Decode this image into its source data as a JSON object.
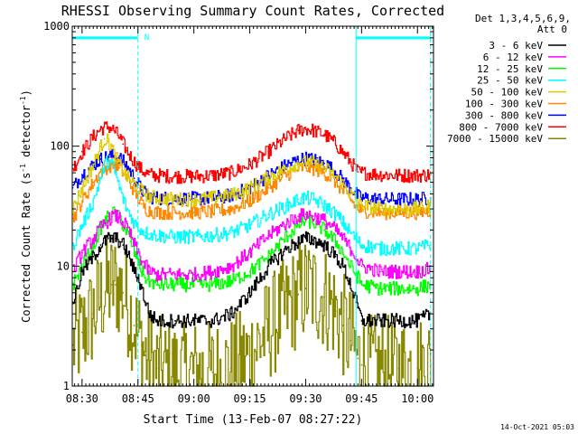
{
  "chart_data": {
    "type": "line",
    "title": "RHESSI Observing Summary Count Rates, Corrected",
    "xlabel": "Start Time (13-Feb-07 08:27:22)",
    "ylabel_base": "Corrected Count Rate (s",
    "ylabel_sup1": "-1",
    "ylabel_mid": " detector",
    "ylabel_sup2": "-1",
    "ylabel_end": ")",
    "x_range_minutes": [
      -2.63,
      94.3
    ],
    "y_range": [
      1,
      1000
    ],
    "y_scale": "log",
    "x_ticks": [
      {
        "minute": 0,
        "label": "08:30"
      },
      {
        "minute": 15,
        "label": "08:45"
      },
      {
        "minute": 30,
        "label": "09:00"
      },
      {
        "minute": 45,
        "label": "09:15"
      },
      {
        "minute": 60,
        "label": "09:30"
      },
      {
        "minute": 75,
        "label": "09:45"
      },
      {
        "minute": 90,
        "label": "10:00"
      }
    ],
    "y_ticks": [
      {
        "value": 1,
        "label": "1"
      },
      {
        "value": 10,
        "label": "10"
      },
      {
        "value": 100,
        "label": "100"
      },
      {
        "value": 1000,
        "label": "1000"
      }
    ],
    "legend": {
      "header_line1": "Det 1,3,4,5,6,9,",
      "header_line2": "Att 0",
      "placement": "right"
    },
    "attenuator_flag": {
      "label": "N",
      "segments": [
        [
          -2.63,
          15
        ],
        [
          73.5,
          93.5
        ]
      ],
      "value": 800
    },
    "dashed_markers_minutes": [
      15,
      93.5
    ],
    "solid_markers_minutes": [
      -2.63,
      73.5
    ],
    "series": [
      {
        "name": "3 - 6 keV",
        "color": "#000000",
        "x": [
          -2.5,
          0,
          3,
          5,
          7,
          8,
          9,
          10,
          11,
          12,
          13,
          14,
          15,
          16,
          17,
          18,
          20,
          25,
          30,
          35,
          40,
          45,
          50,
          55,
          58,
          60,
          62,
          65,
          68,
          70,
          72,
          73.5,
          74,
          75,
          80,
          85,
          90,
          93.5
        ],
        "y": [
          5,
          9,
          12,
          15,
          17,
          17,
          17,
          16,
          15,
          13,
          11,
          9,
          8,
          6.5,
          5,
          4,
          3.5,
          3.5,
          3.5,
          3.5,
          4,
          6,
          10,
          14,
          16,
          17,
          16.5,
          15,
          12,
          10,
          7,
          5,
          4.5,
          3.5,
          3.5,
          3.5,
          3.5,
          4
        ]
      },
      {
        "name": "6 - 12 keV",
        "color": "#ff00ff",
        "x": [
          -2.5,
          0,
          3,
          5,
          7,
          8,
          9,
          10,
          11,
          12,
          13,
          14,
          15,
          16,
          17,
          18,
          20,
          25,
          30,
          35,
          40,
          45,
          50,
          55,
          58,
          60,
          62,
          65,
          68,
          70,
          72,
          73.5,
          74,
          75,
          80,
          85,
          90,
          93.5
        ],
        "y": [
          9,
          13,
          17,
          21,
          24,
          26,
          26,
          25,
          23,
          21,
          18,
          15,
          13,
          11,
          10,
          9,
          8.5,
          8.5,
          8.5,
          9,
          10,
          13,
          18,
          23,
          26,
          27,
          26,
          24,
          20,
          17,
          14,
          12,
          11,
          10,
          9,
          9,
          9,
          9.5
        ]
      },
      {
        "name": "12 - 25 keV",
        "color": "#00ff00",
        "x": [
          -2.5,
          0,
          3,
          5,
          7,
          8,
          9,
          10,
          11,
          12,
          13,
          14,
          15,
          16,
          17,
          18,
          20,
          25,
          30,
          35,
          40,
          45,
          50,
          55,
          58,
          60,
          62,
          65,
          68,
          70,
          72,
          73.5,
          74,
          75,
          80,
          85,
          90,
          93.5
        ],
        "y": [
          7,
          10,
          15,
          21,
          26,
          28,
          27,
          25,
          22,
          19,
          16,
          13,
          11,
          9,
          8,
          7.5,
          7,
          7,
          7,
          7,
          7.5,
          9,
          12,
          18,
          22,
          24,
          23,
          20,
          16,
          13,
          10,
          8.5,
          8,
          7,
          6.5,
          6.5,
          6.5,
          7
        ]
      },
      {
        "name": "25 - 50 keV",
        "color": "#00ffff",
        "x": [
          -2.5,
          0,
          3,
          5,
          6,
          7,
          8,
          9,
          10,
          11,
          12,
          13,
          14,
          15,
          16,
          17,
          18,
          20,
          25,
          30,
          35,
          40,
          45,
          50,
          55,
          58,
          60,
          62,
          65,
          68,
          70,
          72,
          73.5,
          74,
          75,
          80,
          85,
          90,
          93.5
        ],
        "y": [
          15,
          22,
          35,
          55,
          70,
          75,
          70,
          58,
          45,
          36,
          30,
          26,
          23,
          21,
          20,
          19,
          18.5,
          18,
          17.5,
          17.5,
          18,
          19,
          22,
          27,
          32,
          36,
          37,
          36,
          32,
          27,
          23,
          19,
          17,
          16,
          15,
          14,
          14,
          14,
          15
        ]
      },
      {
        "name": "50 - 100 keV",
        "color": "#ddcc00",
        "x": [
          -2.5,
          0,
          3,
          5,
          6,
          7,
          8,
          9,
          10,
          11,
          12,
          13,
          14,
          15,
          16,
          17,
          18,
          20,
          25,
          30,
          35,
          40,
          45,
          50,
          55,
          58,
          60,
          62,
          65,
          68,
          70,
          72,
          73.5,
          74,
          75,
          80,
          85,
          90,
          93.5
        ],
        "y": [
          30,
          45,
          70,
          100,
          115,
          110,
          95,
          80,
          70,
          62,
          56,
          52,
          48,
          45,
          42,
          40,
          38,
          37,
          36,
          36,
          37,
          39,
          45,
          55,
          66,
          72,
          74,
          72,
          66,
          56,
          48,
          40,
          36,
          34,
          32,
          30,
          30,
          30,
          32
        ]
      },
      {
        "name": "100 - 300 keV",
        "color": "#ff8800",
        "x": [
          -2.5,
          0,
          3,
          5,
          7,
          8,
          9,
          10,
          11,
          12,
          13,
          14,
          15,
          16,
          17,
          18,
          20,
          25,
          30,
          35,
          40,
          45,
          50,
          55,
          58,
          60,
          62,
          65,
          68,
          70,
          72,
          73.5,
          74,
          75,
          80,
          85,
          90,
          93.5
        ],
        "y": [
          25,
          35,
          50,
          62,
          68,
          70,
          69,
          66,
          60,
          54,
          48,
          42,
          37,
          33,
          30,
          29,
          28,
          28,
          28,
          28.5,
          30,
          35,
          45,
          58,
          65,
          67,
          65,
          60,
          50,
          42,
          36,
          31,
          30,
          29,
          28,
          28,
          28,
          29
        ]
      },
      {
        "name": "300 - 800 keV",
        "color": "#0000ff",
        "x": [
          -2.5,
          0,
          3,
          5,
          7,
          8,
          9,
          10,
          11,
          12,
          13,
          14,
          15,
          16,
          17,
          18,
          20,
          25,
          30,
          35,
          40,
          45,
          50,
          55,
          58,
          60,
          62,
          65,
          68,
          70,
          72,
          73.5,
          74,
          75,
          80,
          85,
          90,
          93.5
        ],
        "y": [
          45,
          58,
          70,
          78,
          82,
          83,
          82,
          79,
          74,
          68,
          61,
          54,
          48,
          43,
          40,
          38,
          37,
          36.5,
          36.5,
          37,
          39,
          45,
          57,
          70,
          77,
          79,
          77,
          72,
          61,
          52,
          45,
          40,
          38,
          37,
          36,
          36,
          36,
          37
        ]
      },
      {
        "name": "800 - 7000 keV",
        "color": "#ff0000",
        "x": [
          -2.5,
          0,
          3,
          5,
          7,
          8,
          9,
          10,
          11,
          12,
          13,
          14,
          15,
          16,
          17,
          18,
          20,
          25,
          30,
          35,
          40,
          45,
          50,
          55,
          58,
          60,
          62,
          65,
          68,
          70,
          72,
          73.5,
          74,
          75,
          80,
          85,
          90,
          93.5
        ],
        "y": [
          65,
          90,
          120,
          140,
          145,
          140,
          130,
          118,
          104,
          92,
          82,
          74,
          68,
          63,
          60,
          58,
          57,
          56,
          56,
          57,
          60,
          70,
          90,
          118,
          135,
          140,
          135,
          125,
          105,
          88,
          74,
          64,
          61,
          60,
          58,
          57,
          57,
          58
        ]
      },
      {
        "name": "7000 - 15000 keV",
        "color": "#888800",
        "x": [
          -2.5,
          0,
          3,
          5,
          7,
          8,
          9,
          10,
          11,
          12,
          13,
          14,
          15,
          16,
          17,
          18,
          20,
          25,
          30,
          35,
          40,
          45,
          50,
          55,
          58,
          60,
          62,
          65,
          68,
          70,
          72,
          73.5,
          74,
          75,
          80,
          85,
          90,
          93.5
        ],
        "y": [
          2.2,
          2.8,
          4,
          5.5,
          6.5,
          7,
          7,
          6.5,
          6,
          5,
          4,
          3.2,
          2.6,
          2.2,
          1.8,
          1.6,
          1.4,
          1.3,
          1.3,
          1.3,
          1.4,
          1.8,
          3,
          4.5,
          5.8,
          6.5,
          6.2,
          5.5,
          4.2,
          3.2,
          2.4,
          1.9,
          1.7,
          1.5,
          1.4,
          1.4,
          1.4,
          1.5
        ]
      }
    ]
  },
  "footer": {
    "timestamp": "14-Oct-2021 05:03"
  }
}
